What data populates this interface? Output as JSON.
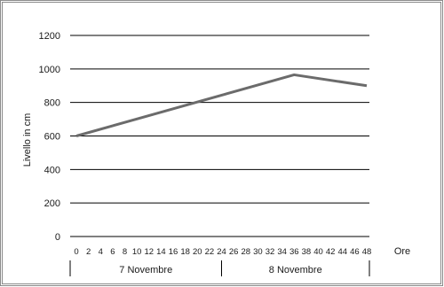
{
  "chart_data": {
    "type": "line",
    "title": "",
    "xlabel": "Ore",
    "ylabel": "Livello in cm",
    "ylim": [
      0,
      1200
    ],
    "xlim": [
      0,
      48
    ],
    "y_ticks": [
      0,
      200,
      400,
      600,
      800,
      1000,
      1200
    ],
    "x_ticks": [
      0,
      2,
      4,
      6,
      8,
      10,
      12,
      14,
      16,
      18,
      20,
      22,
      24,
      26,
      28,
      30,
      32,
      34,
      36,
      38,
      40,
      42,
      44,
      46,
      48
    ],
    "grid": "horizontal",
    "series": [
      {
        "x": [
          0,
          36,
          48
        ],
        "values": [
          600,
          965,
          900
        ],
        "color": "#6b6b6b"
      }
    ],
    "day_groups": [
      {
        "label": "7 Novembre",
        "from": 0,
        "to": 24
      },
      {
        "label": "8 Novembre",
        "from": 24,
        "to": 48
      }
    ]
  }
}
